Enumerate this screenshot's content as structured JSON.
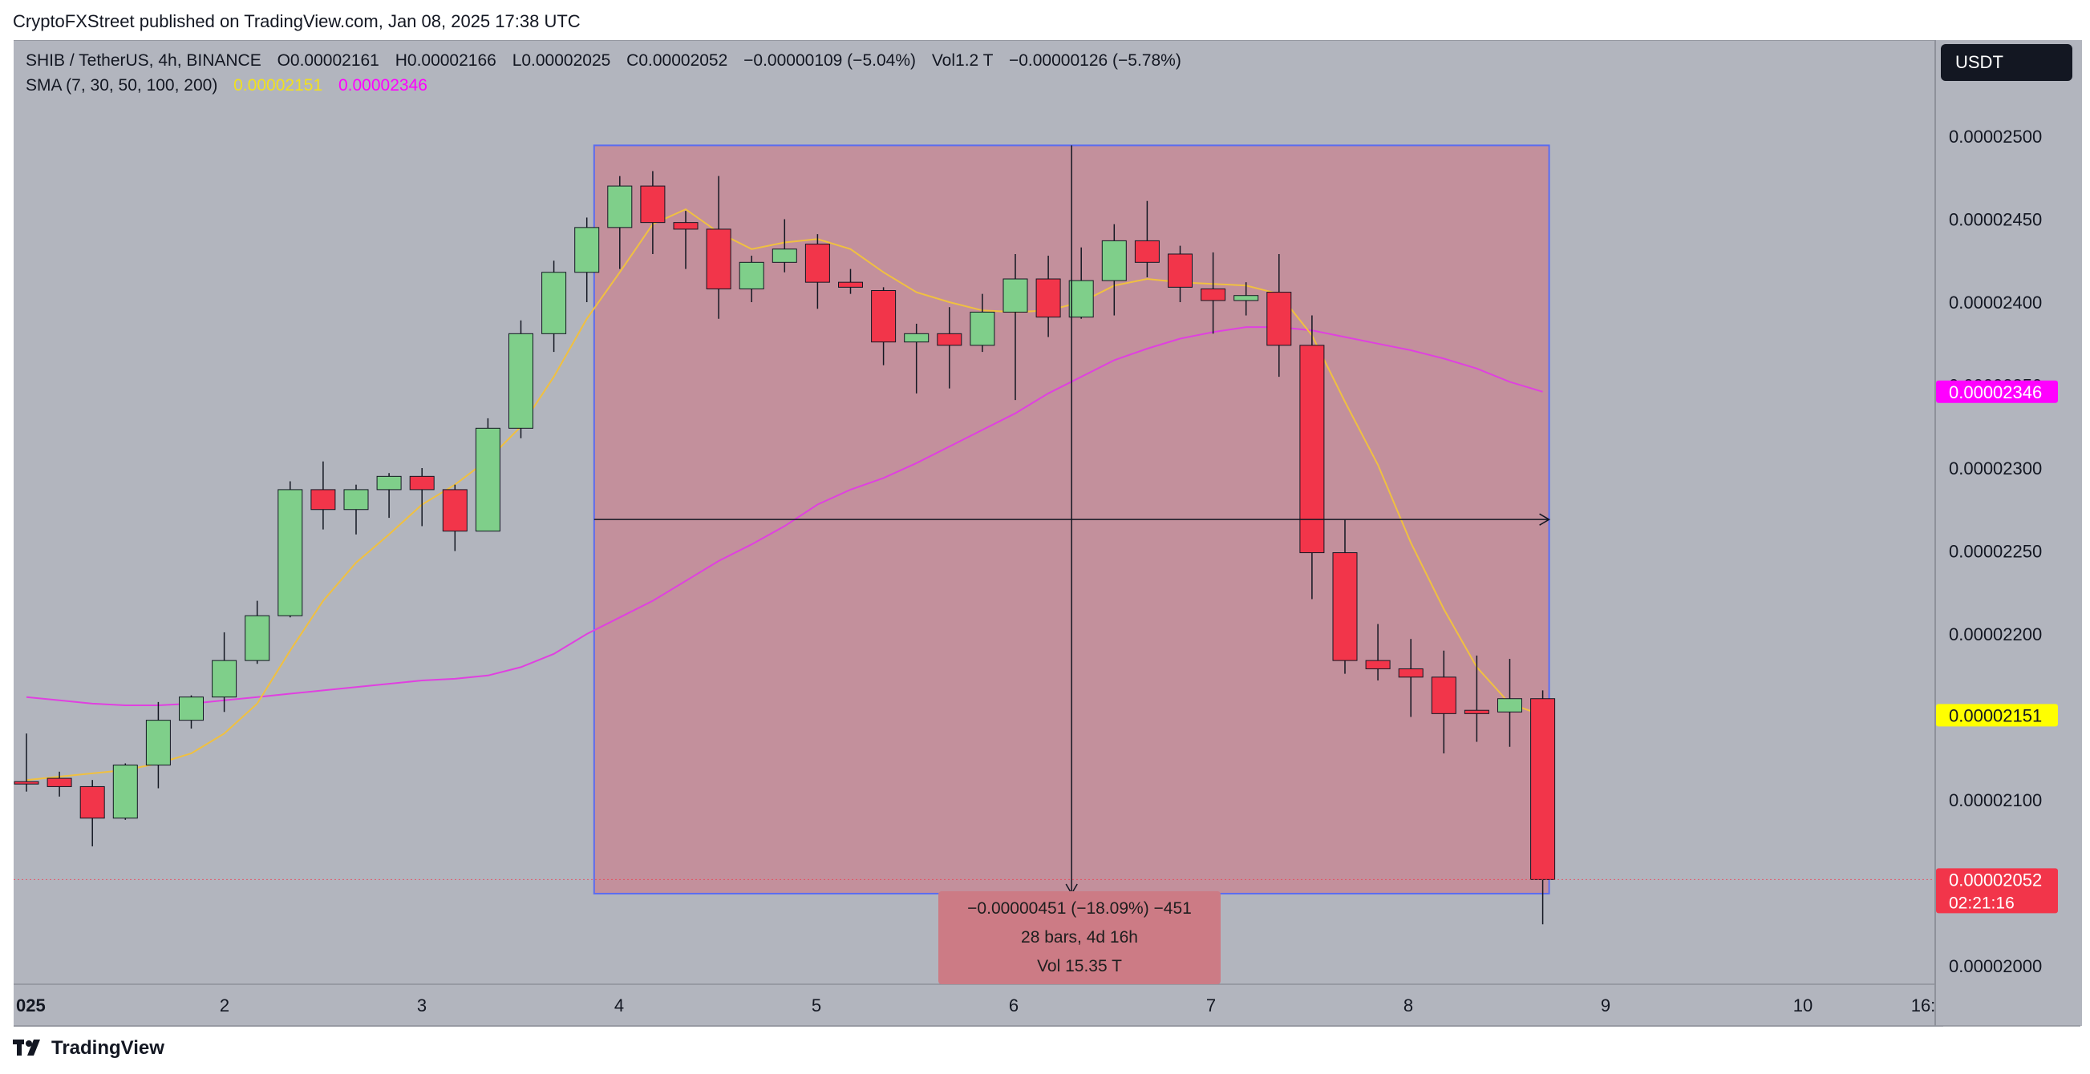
{
  "header": {
    "publisher_line": "CryptoFXStreet published on TradingView.com, Jan 08, 2025 17:38 UTC"
  },
  "legend": {
    "symbol": "SHIB / TetherUS, 4h, BINANCE",
    "open": "O0.00002161",
    "high": "H0.00002166",
    "low": "L0.00002025",
    "close": "C0.00002052",
    "change": "−0.00000109 (−5.04%)",
    "volume": "Vol1.2 T",
    "vol_change": "−0.00000126 (−5.78%)",
    "sma_label": "SMA (7, 30, 50, 100, 200)",
    "sma7_value": "0.00002151",
    "sma30_value": "0.00002346"
  },
  "toolbar": {
    "currency": "USDT"
  },
  "measure": {
    "line1": "−0.00000451 (−18.09%) −451",
    "line2": "28 bars, 4d 16h",
    "line3": "Vol 15.35 T"
  },
  "footer": {
    "brand": "TradingView"
  },
  "colors": {
    "up": "#7fcf8a",
    "down": "#f2354a",
    "sma7": "#f0c040",
    "sma30": "#e040e0",
    "measure_fill": "#c58a96"
  },
  "chart_data": {
    "type": "candlestick",
    "interval": "4h",
    "y_ticks": [
      "0.00002000",
      "0.00002050",
      "0.00002100",
      "0.00002150",
      "0.00002200",
      "0.00002250",
      "0.00002300",
      "0.00002350",
      "0.00002400",
      "0.00002450",
      "0.00002500"
    ],
    "x_ticks": [
      "025",
      "2",
      "3",
      "4",
      "5",
      "6",
      "7",
      "8",
      "9",
      "10",
      "16:"
    ],
    "ylim": [
      1.975e-05,
      2.545e-05
    ],
    "price_labels": {
      "sma30": "0.00002346",
      "sma7": "0.00002151",
      "last": "0.00002052",
      "countdown": "02:21:16"
    },
    "candles": [
      {
        "o": 2.111,
        "h": 2.14,
        "l": 2.105,
        "c": 2.11
      },
      {
        "o": 2.113,
        "h": 2.117,
        "l": 2.102,
        "c": 2.108
      },
      {
        "o": 2.108,
        "h": 2.112,
        "l": 2.072,
        "c": 2.089
      },
      {
        "o": 2.089,
        "h": 2.122,
        "l": 2.088,
        "c": 2.121
      },
      {
        "o": 2.121,
        "h": 2.159,
        "l": 2.107,
        "c": 2.148
      },
      {
        "o": 2.148,
        "h": 2.163,
        "l": 2.143,
        "c": 2.162
      },
      {
        "o": 2.162,
        "h": 2.201,
        "l": 2.153,
        "c": 2.184
      },
      {
        "o": 2.184,
        "h": 2.22,
        "l": 2.182,
        "c": 2.211
      },
      {
        "o": 2.211,
        "h": 2.292,
        "l": 2.21,
        "c": 2.287
      },
      {
        "o": 2.287,
        "h": 2.304,
        "l": 2.263,
        "c": 2.275
      },
      {
        "o": 2.275,
        "h": 2.29,
        "l": 2.26,
        "c": 2.287
      },
      {
        "o": 2.287,
        "h": 2.297,
        "l": 2.27,
        "c": 2.295
      },
      {
        "o": 2.295,
        "h": 2.3,
        "l": 2.265,
        "c": 2.287
      },
      {
        "o": 2.287,
        "h": 2.29,
        "l": 2.25,
        "c": 2.262
      },
      {
        "o": 2.262,
        "h": 2.33,
        "l": 2.262,
        "c": 2.324
      },
      {
        "o": 2.324,
        "h": 2.389,
        "l": 2.318,
        "c": 2.381
      },
      {
        "o": 2.381,
        "h": 2.425,
        "l": 2.37,
        "c": 2.418
      },
      {
        "o": 2.418,
        "h": 2.451,
        "l": 2.4,
        "c": 2.445
      },
      {
        "o": 2.445,
        "h": 2.476,
        "l": 2.42,
        "c": 2.47
      },
      {
        "o": 2.47,
        "h": 2.479,
        "l": 2.429,
        "c": 2.448
      },
      {
        "o": 2.448,
        "h": 2.455,
        "l": 2.42,
        "c": 2.444
      },
      {
        "o": 2.444,
        "h": 2.476,
        "l": 2.39,
        "c": 2.408
      },
      {
        "o": 2.408,
        "h": 2.428,
        "l": 2.4,
        "c": 2.424
      },
      {
        "o": 2.424,
        "h": 2.45,
        "l": 2.418,
        "c": 2.432
      },
      {
        "o": 2.435,
        "h": 2.441,
        "l": 2.396,
        "c": 2.412
      },
      {
        "o": 2.412,
        "h": 2.42,
        "l": 2.405,
        "c": 2.409
      },
      {
        "o": 2.407,
        "h": 2.409,
        "l": 2.362,
        "c": 2.376
      },
      {
        "o": 2.376,
        "h": 2.387,
        "l": 2.345,
        "c": 2.381
      },
      {
        "o": 2.381,
        "h": 2.397,
        "l": 2.348,
        "c": 2.374
      },
      {
        "o": 2.374,
        "h": 2.405,
        "l": 2.37,
        "c": 2.394
      },
      {
        "o": 2.394,
        "h": 2.429,
        "l": 2.341,
        "c": 2.414
      },
      {
        "o": 2.414,
        "h": 2.428,
        "l": 2.379,
        "c": 2.391
      },
      {
        "o": 2.391,
        "h": 2.433,
        "l": 2.39,
        "c": 2.413
      },
      {
        "o": 2.413,
        "h": 2.447,
        "l": 2.392,
        "c": 2.437
      },
      {
        "o": 2.437,
        "h": 2.461,
        "l": 2.415,
        "c": 2.424
      },
      {
        "o": 2.429,
        "h": 2.434,
        "l": 2.4,
        "c": 2.409
      },
      {
        "o": 2.408,
        "h": 2.43,
        "l": 2.381,
        "c": 2.401
      },
      {
        "o": 2.401,
        "h": 2.412,
        "l": 2.392,
        "c": 2.404
      },
      {
        "o": 2.406,
        "h": 2.429,
        "l": 2.355,
        "c": 2.374
      },
      {
        "o": 2.374,
        "h": 2.392,
        "l": 2.221,
        "c": 2.249
      },
      {
        "o": 2.249,
        "h": 2.269,
        "l": 2.176,
        "c": 2.184
      },
      {
        "o": 2.184,
        "h": 2.206,
        "l": 2.172,
        "c": 2.179
      },
      {
        "o": 2.179,
        "h": 2.197,
        "l": 2.15,
        "c": 2.174
      },
      {
        "o": 2.174,
        "h": 2.19,
        "l": 2.128,
        "c": 2.152
      },
      {
        "o": 2.154,
        "h": 2.187,
        "l": 2.135,
        "c": 2.152
      },
      {
        "o": 2.153,
        "h": 2.185,
        "l": 2.132,
        "c": 2.161
      },
      {
        "o": 2.161,
        "h": 2.166,
        "l": 2.025,
        "c": 2.052
      }
    ],
    "sma7": [
      2.112,
      2.114,
      2.116,
      2.118,
      2.122,
      2.128,
      2.14,
      2.158,
      2.19,
      2.22,
      2.243,
      2.26,
      2.278,
      2.29,
      2.305,
      2.325,
      2.355,
      2.39,
      2.418,
      2.447,
      2.456,
      2.442,
      2.432,
      2.436,
      2.438,
      2.432,
      2.418,
      2.406,
      2.4,
      2.395,
      2.394,
      2.395,
      2.4,
      2.41,
      2.414,
      2.412,
      2.411,
      2.41,
      2.405,
      2.38,
      2.34,
      2.302,
      2.255,
      2.215,
      2.18,
      2.158,
      2.151
    ],
    "sma30": [
      2.162,
      2.16,
      2.158,
      2.157,
      2.157,
      2.158,
      2.16,
      2.162,
      2.164,
      2.166,
      2.168,
      2.17,
      2.172,
      2.173,
      2.175,
      2.18,
      2.188,
      2.2,
      2.21,
      2.22,
      2.232,
      2.244,
      2.254,
      2.265,
      2.278,
      2.287,
      2.294,
      2.303,
      2.313,
      2.323,
      2.333,
      2.345,
      2.355,
      2.365,
      2.372,
      2.378,
      2.382,
      2.385,
      2.385,
      2.383,
      2.379,
      2.375,
      2.371,
      2.366,
      2.36,
      2.352,
      2.346
    ],
    "value_scale": 1e-05,
    "measure": {
      "from_price": 2.4945,
      "to_price": 2.0435,
      "start_bar": 18,
      "end_bar": 46,
      "bars": 28
    }
  }
}
